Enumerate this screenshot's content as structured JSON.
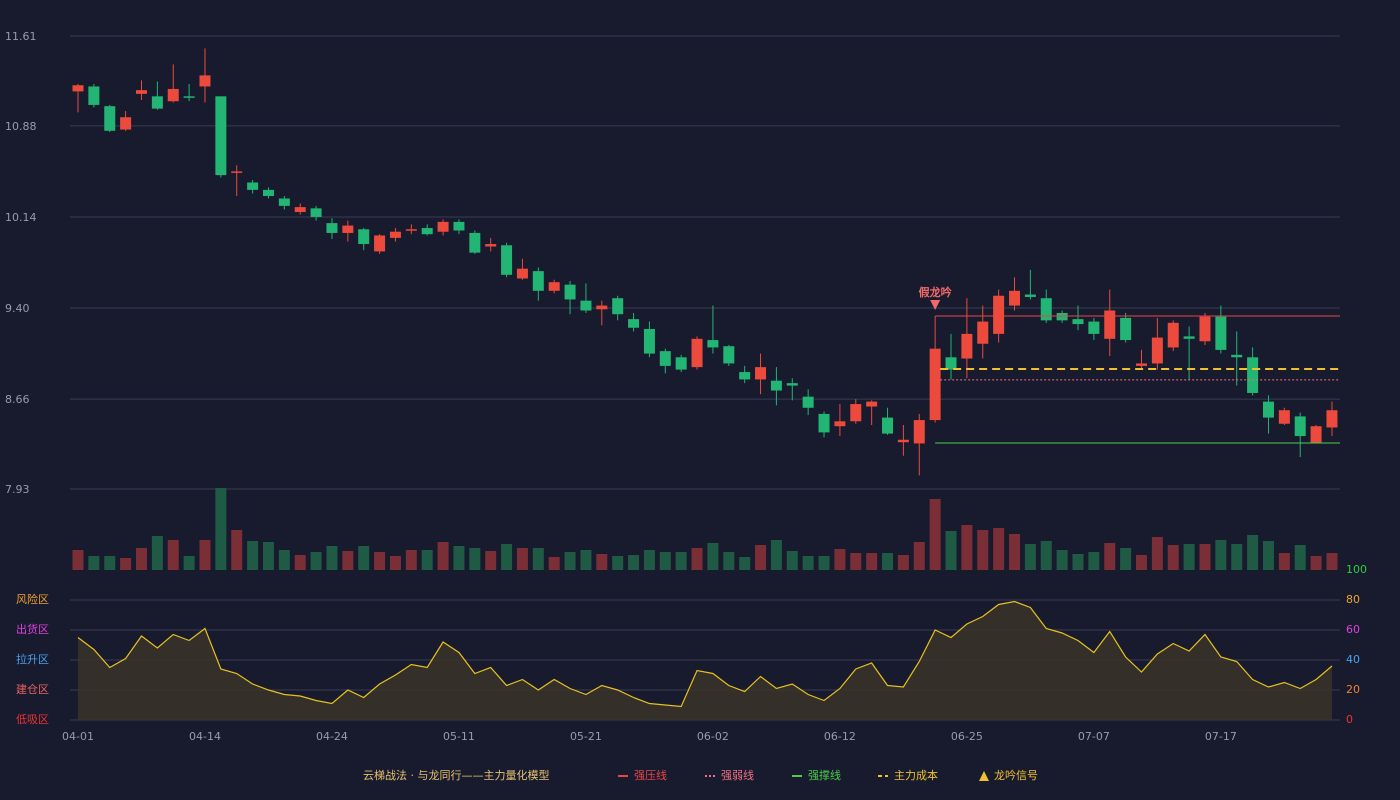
{
  "chart_data": {
    "type": "candlestick",
    "categories": [
      "04-01",
      null,
      null,
      null,
      null,
      null,
      null,
      null,
      "04-14",
      null,
      null,
      null,
      null,
      null,
      null,
      null,
      "04-24",
      null,
      null,
      null,
      null,
      null,
      null,
      null,
      "05-11",
      null,
      null,
      null,
      null,
      null,
      null,
      null,
      "05-21",
      null,
      null,
      null,
      null,
      null,
      null,
      null,
      "06-02",
      null,
      null,
      null,
      null,
      null,
      null,
      null,
      "06-12",
      null,
      null,
      null,
      null,
      null,
      null,
      null,
      "06-25",
      null,
      null,
      null,
      null,
      null,
      null,
      null,
      "07-07",
      null,
      null,
      null,
      null,
      null,
      null,
      null,
      "07-17",
      null,
      null,
      null,
      null,
      null,
      null,
      null
    ],
    "open": [
      11.16,
      11.2,
      11.04,
      10.85,
      11.14,
      11.12,
      11.08,
      11.12,
      11.2,
      11.12,
      10.5,
      10.42,
      10.36,
      10.29,
      10.18,
      10.21,
      10.09,
      10.01,
      10.04,
      9.86,
      9.97,
      10.03,
      10.05,
      10.02,
      10.1,
      10.01,
      9.9,
      9.91,
      9.64,
      9.7,
      9.54,
      9.59,
      9.46,
      9.39,
      9.48,
      9.31,
      9.23,
      9.05,
      9.0,
      8.92,
      9.14,
      9.09,
      8.88,
      8.82,
      8.81,
      8.79,
      8.68,
      8.54,
      8.44,
      8.48,
      8.6,
      8.51,
      8.31,
      8.3,
      8.49,
      9.0,
      8.99,
      9.11,
      9.19,
      9.42,
      9.51,
      9.48,
      9.36,
      9.31,
      9.29,
      9.15,
      9.32,
      8.93,
      8.95,
      9.08,
      9.17,
      9.13,
      9.33,
      9.02,
      9.0,
      8.64,
      8.46,
      8.52,
      8.3,
      8.43
    ],
    "high": [
      11.22,
      11.22,
      11.05,
      11.0,
      11.25,
      11.24,
      11.38,
      11.22,
      11.51,
      11.12,
      10.56,
      10.44,
      10.38,
      10.31,
      10.25,
      10.23,
      10.13,
      10.11,
      10.05,
      10.0,
      10.05,
      10.08,
      10.08,
      10.12,
      10.12,
      10.03,
      9.97,
      9.93,
      9.8,
      9.73,
      9.63,
      9.62,
      9.6,
      9.46,
      9.5,
      9.36,
      9.29,
      9.07,
      9.02,
      9.17,
      9.42,
      9.1,
      8.93,
      9.03,
      8.92,
      8.83,
      8.74,
      8.56,
      8.62,
      8.66,
      8.65,
      8.59,
      8.45,
      8.54,
      9.08,
      9.19,
      9.48,
      9.42,
      9.55,
      9.65,
      9.71,
      9.55,
      9.38,
      9.42,
      9.32,
      9.55,
      9.36,
      9.06,
      9.32,
      9.3,
      9.25,
      9.36,
      9.42,
      9.21,
      9.08,
      8.69,
      8.59,
      8.55,
      8.45,
      8.64
    ],
    "low": [
      10.99,
      11.03,
      10.83,
      10.84,
      11.09,
      11.01,
      11.07,
      11.08,
      11.07,
      10.46,
      10.31,
      10.33,
      10.29,
      10.2,
      10.16,
      10.11,
      9.96,
      9.94,
      9.87,
      9.84,
      9.94,
      10.0,
      9.99,
      9.99,
      10.0,
      9.84,
      9.86,
      9.65,
      9.63,
      9.46,
      9.52,
      9.35,
      9.36,
      9.26,
      9.3,
      9.21,
      9.0,
      8.87,
      8.88,
      8.9,
      9.03,
      8.93,
      8.79,
      8.7,
      8.61,
      8.65,
      8.53,
      8.35,
      8.36,
      8.46,
      8.45,
      8.37,
      8.2,
      8.04,
      8.47,
      8.82,
      8.83,
      8.99,
      9.12,
      9.38,
      9.47,
      9.28,
      9.28,
      9.22,
      9.14,
      9.01,
      9.12,
      8.9,
      8.9,
      9.05,
      8.82,
      9.1,
      9.03,
      8.77,
      8.69,
      8.38,
      8.45,
      8.19,
      8.3,
      8.36
    ],
    "close": [
      11.21,
      11.05,
      10.84,
      10.95,
      11.17,
      11.02,
      11.18,
      11.11,
      11.29,
      10.48,
      10.51,
      10.36,
      10.31,
      10.23,
      10.22,
      10.14,
      10.01,
      10.07,
      9.92,
      9.99,
      10.02,
      10.04,
      10.0,
      10.1,
      10.03,
      9.85,
      9.92,
      9.67,
      9.72,
      9.54,
      9.61,
      9.47,
      9.38,
      9.42,
      9.35,
      9.24,
      9.03,
      8.93,
      8.9,
      9.15,
      9.08,
      8.95,
      8.82,
      8.92,
      8.73,
      8.77,
      8.59,
      8.39,
      8.48,
      8.62,
      8.64,
      8.38,
      8.33,
      8.49,
      9.07,
      8.9,
      9.19,
      9.29,
      9.5,
      9.54,
      9.49,
      9.3,
      9.3,
      9.27,
      9.19,
      9.38,
      9.14,
      8.95,
      9.16,
      9.28,
      9.15,
      9.33,
      9.06,
      9.0,
      8.71,
      8.51,
      8.57,
      8.36,
      8.44,
      8.57
    ],
    "volume": [
      20,
      14,
      14,
      12,
      22,
      34,
      30,
      14,
      30,
      82,
      40,
      29,
      28,
      20,
      15,
      18,
      24,
      19,
      24,
      18,
      14,
      20,
      20,
      28,
      24,
      22,
      19,
      26,
      22,
      22,
      13,
      18,
      20,
      16,
      14,
      15,
      20,
      18,
      18,
      22,
      27,
      18,
      13,
      25,
      30,
      19,
      14,
      14,
      21,
      17,
      17,
      17,
      15,
      28,
      71,
      39,
      45,
      40,
      42,
      36,
      26,
      29,
      20,
      16,
      18,
      27,
      22,
      15,
      33,
      25,
      26,
      26,
      30,
      26,
      35,
      29,
      17,
      25,
      14,
      17
    ],
    "up_color": "#ec4a3c",
    "down_color": "#22b573",
    "volume_up_color": "#7a2e36",
    "volume_down_color": "#1f5a45",
    "ylim": [
      7.93,
      11.61
    ],
    "yticks": [
      {
        "value": 7.93,
        "label": "7.93"
      },
      {
        "value": 8.66,
        "label": "8.66"
      },
      {
        "value": 9.4,
        "label": "9.40"
      },
      {
        "value": 10.14,
        "label": "10.14"
      },
      {
        "value": 10.88,
        "label": "10.88"
      },
      {
        "value": 11.61,
        "label": "11.61"
      }
    ],
    "grid": true,
    "lines": [
      {
        "name": "强压线",
        "color": "#e84545",
        "value": 9.335,
        "style": "solid"
      },
      {
        "name": "强弱线",
        "color": "#f07080",
        "value": 8.816,
        "style": "dotted"
      },
      {
        "name": "强撑线",
        "color": "#4ccc4c",
        "value": 8.304,
        "style": "solid"
      },
      {
        "name": "主力成本",
        "color": "#f0c030",
        "value": 8.905,
        "style": "dashed"
      }
    ],
    "signal": {
      "name": "龙吟信号",
      "label": "假龙吟",
      "index": 54,
      "color": "#f06a6a",
      "legend_color": "#f0c030"
    },
    "legend_title": "云梯战法 · 与龙同行——主力量化模型",
    "indicator": {
      "values": [
        55,
        47,
        35,
        41,
        56,
        48,
        57,
        53,
        61,
        34,
        31,
        24,
        20,
        17,
        16,
        13,
        11,
        20,
        15,
        24,
        30,
        37,
        35,
        52,
        45,
        31,
        35,
        23,
        27,
        20,
        27,
        21,
        17,
        23,
        20,
        15,
        11,
        10,
        9,
        33,
        31,
        23,
        19,
        29,
        21,
        24,
        17,
        13,
        21,
        34,
        38,
        23,
        22,
        39,
        60,
        55,
        64,
        69,
        77,
        79,
        75,
        61,
        58,
        53,
        45,
        59,
        42,
        32,
        44,
        51,
        46,
        57,
        42,
        39,
        27,
        22,
        25,
        21,
        27,
        36
      ],
      "color": "#e8c020",
      "ylim": [
        0,
        100
      ],
      "yticks": [
        0,
        20,
        40,
        60,
        80,
        100
      ],
      "ytick_colors": [
        "#f03030",
        "#f08030",
        "#4aa0f0",
        "#e040e0",
        "#f0a030",
        "#2ecc40"
      ],
      "zones": [
        {
          "label": "风险区",
          "value": 80,
          "color": "#f0a030"
        },
        {
          "label": "出货区",
          "value": 60,
          "color": "#e040e0"
        },
        {
          "label": "拉升区",
          "value": 40,
          "color": "#4aa0f0"
        },
        {
          "label": "建仓区",
          "value": 20,
          "color": "#f06060"
        },
        {
          "label": "低吸区",
          "value": 0,
          "color": "#f03030"
        }
      ]
    }
  }
}
